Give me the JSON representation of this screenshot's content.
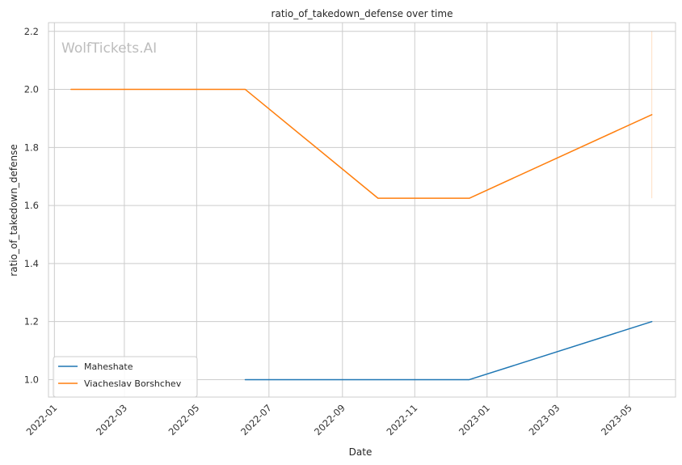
{
  "chart_data": {
    "type": "line",
    "title": "ratio_of_takedown_defense over time",
    "xlabel": "Date",
    "ylabel": "ratio_of_takedown_defense",
    "watermark": "WolfTickets.AI",
    "x_ticks": [
      "2022-01",
      "2022-03",
      "2022-05",
      "2022-07",
      "2022-09",
      "2022-11",
      "2023-01",
      "2023-03",
      "2023-05"
    ],
    "y_ticks": [
      "1.0",
      "1.2",
      "1.4",
      "1.6",
      "1.8",
      "2.0",
      "2.2"
    ],
    "xlim": [
      "2021-12-27",
      "2023-06-09"
    ],
    "ylim": [
      0.94,
      2.23
    ],
    "grid": true,
    "legend_position": "lower-left",
    "series": [
      {
        "name": "Maheshate",
        "color": "#1f77b4",
        "x": [
          "2022-06-11",
          "2022-12-17",
          "2023-05-20"
        ],
        "y": [
          1.0,
          1.0,
          1.2
        ]
      },
      {
        "name": "Viacheslav Borshchev",
        "color": "#ff7f0e",
        "x": [
          "2022-01-15",
          "2022-06-11",
          "2022-10-01",
          "2022-12-17",
          "2023-05-20"
        ],
        "y": [
          2.0,
          2.0,
          1.625,
          1.625,
          1.913
        ]
      }
    ],
    "annotations": [
      {
        "type": "vertical-range",
        "x": "2023-05-20",
        "y_range": [
          1.625,
          2.2
        ],
        "color": "#ff7f0e"
      }
    ]
  }
}
